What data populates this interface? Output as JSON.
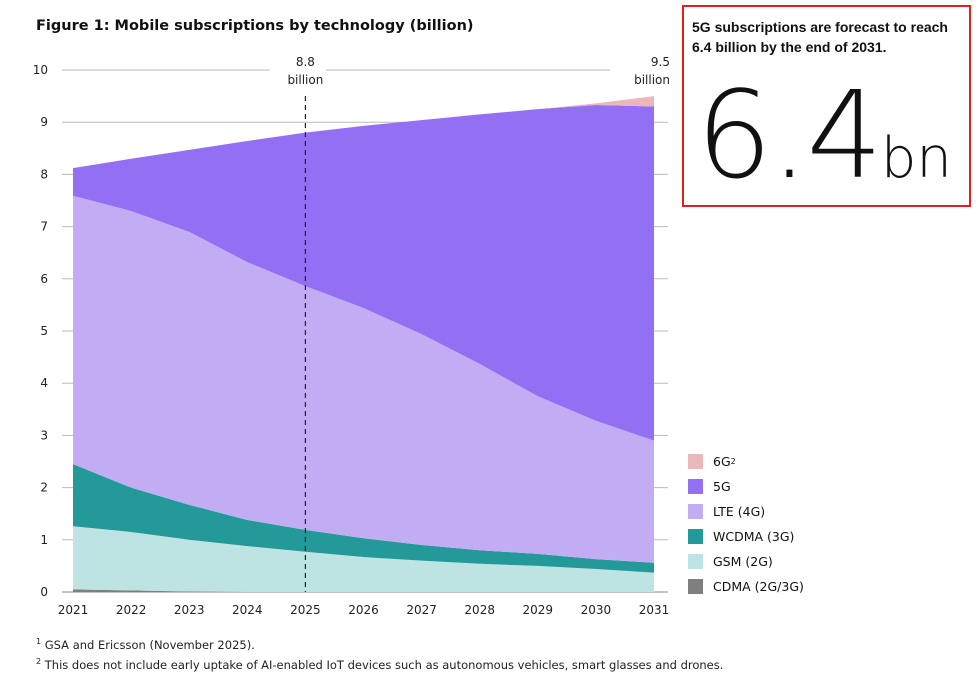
{
  "chart_data": {
    "type": "area",
    "stacked": true,
    "title": "Figure 1: Mobile subscriptions by technology (billion)",
    "categories": [
      "2021",
      "2022",
      "2023",
      "2024",
      "2025",
      "2026",
      "2027",
      "2028",
      "2029",
      "2030",
      "2031"
    ],
    "ylim": [
      0,
      10
    ],
    "yticks": [
      0,
      1,
      2,
      3,
      4,
      5,
      6,
      7,
      8,
      9,
      10
    ],
    "grid": true,
    "legend_position": "right",
    "series": [
      {
        "name": "CDMA (2G/3G)",
        "color": "#7f7f7f",
        "values": [
          0.05,
          0.03,
          0.01,
          0,
          0,
          0,
          0,
          0,
          0,
          0,
          0
        ]
      },
      {
        "name": "GSM (2G)",
        "color": "#bde3e2",
        "values": [
          1.21,
          1.12,
          0.99,
          0.88,
          0.77,
          0.67,
          0.6,
          0.54,
          0.5,
          0.44,
          0.37
        ]
      },
      {
        "name": "WCDMA (3G)",
        "color": "#23999a",
        "values": [
          1.19,
          0.85,
          0.67,
          0.5,
          0.42,
          0.36,
          0.3,
          0.26,
          0.23,
          0.19,
          0.19
        ]
      },
      {
        "name": "LTE (4G)",
        "color": "#c2acf4",
        "values": [
          5.14,
          5.3,
          5.23,
          4.94,
          4.67,
          4.41,
          4.04,
          3.57,
          3.02,
          2.65,
          2.34
        ]
      },
      {
        "name": "5G",
        "color": "#936ff3",
        "values": [
          0.53,
          1.0,
          1.57,
          2.32,
          2.94,
          3.49,
          4.1,
          4.78,
          5.5,
          6.05,
          6.4
        ]
      },
      {
        "name": "6G",
        "name_sup": "2",
        "color": "#eab7bb",
        "values": [
          0,
          0,
          0,
          0,
          0,
          0,
          0,
          0,
          0,
          0.03,
          0.2
        ]
      }
    ],
    "annotations": [
      {
        "year": "2025",
        "value": "8.8",
        "unit": "billion",
        "marker": "dashed-line"
      },
      {
        "year": "2031",
        "value": "9.5",
        "unit": "billion"
      }
    ]
  },
  "callout": {
    "text": "5G subscriptions are forecast to reach 6.4 billion by the end of 2031.",
    "figure": "6.4",
    "unit": "bn"
  },
  "footnotes": [
    {
      "mark": "1",
      "text": "GSA and Ericsson (November 2025)."
    },
    {
      "mark": "2",
      "text": "This does not include early uptake of AI-enabled IoT devices such as autonomous vehicles, smart glasses and drones."
    }
  ]
}
